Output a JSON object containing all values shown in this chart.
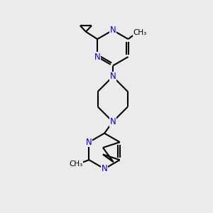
{
  "background_color": "#ebebeb",
  "bond_color": "#000000",
  "N_color": "#0000ee",
  "line_width": 1.5,
  "font_size": 8.5,
  "figsize": [
    3.0,
    3.0
  ],
  "dpi": 100,
  "xlim": [
    0,
    10
  ],
  "ylim": [
    0,
    10
  ]
}
